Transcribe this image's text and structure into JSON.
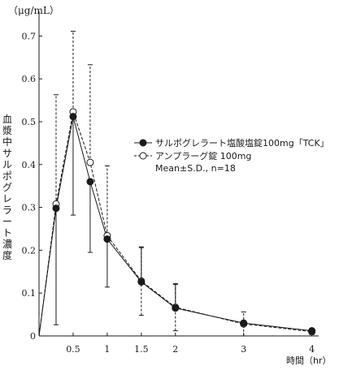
{
  "chart_data": {
    "type": "line",
    "unit_label": "（μg/mL）",
    "ylabel": "血漿中サルポグレラート濃度",
    "xlabel": "時間（hr）",
    "ylim": [
      0,
      0.75
    ],
    "xlim": [
      0,
      4.1
    ],
    "yticks": [
      0,
      0.1,
      0.2,
      0.3,
      0.4,
      0.5,
      0.6,
      0.7
    ],
    "ytick_labels": [
      "0",
      "0.1",
      "0.2",
      "0.3",
      "0.4",
      "0.5",
      "0.6",
      "0.7"
    ],
    "xticks": [
      0.5,
      1,
      1.5,
      2,
      3,
      4
    ],
    "xtick_labels": [
      "0.5",
      "1",
      "1.5",
      "2",
      "3",
      "4"
    ],
    "series": [
      {
        "name": "サルポグレラート塩酸塩錠100mg「TCK」",
        "marker": "filled-circle",
        "line_style": "solid",
        "error_style": "solid",
        "color": "#1a1a1a",
        "x": [
          0,
          0.25,
          0.5,
          0.75,
          1,
          1.5,
          2,
          3,
          4
        ],
        "y": [
          0,
          0.298,
          0.512,
          0.36,
          0.226,
          0.126,
          0.065,
          0.03,
          0.012
        ],
        "sd": [
          0,
          0.272,
          0.23,
          0.165,
          0.112,
          0.0,
          0.0,
          0.0,
          0.0
        ]
      },
      {
        "name": "アンプラーグ錠 100mg",
        "marker": "open-circle",
        "line_style": "dashed",
        "error_style": "dashed",
        "color": "#1a1a1a",
        "x": [
          0,
          0.25,
          0.5,
          0.75,
          1,
          1.5,
          2,
          3,
          4
        ],
        "y": [
          0,
          0.308,
          0.523,
          0.405,
          0.234,
          0.128,
          0.067,
          0.028,
          0.01
        ],
        "sd": [
          0,
          0.255,
          0.188,
          0.228,
          0.163,
          0.08,
          0.055,
          0.028,
          0.007
        ]
      }
    ],
    "series_a_upper_err": [
      0,
      0.0,
      0.0,
      0.0,
      0.0,
      0.08,
      0.055,
      0.0,
      0.0
    ],
    "legend_note": "Mean±S.D., n=18",
    "legend_position": "center-right"
  }
}
